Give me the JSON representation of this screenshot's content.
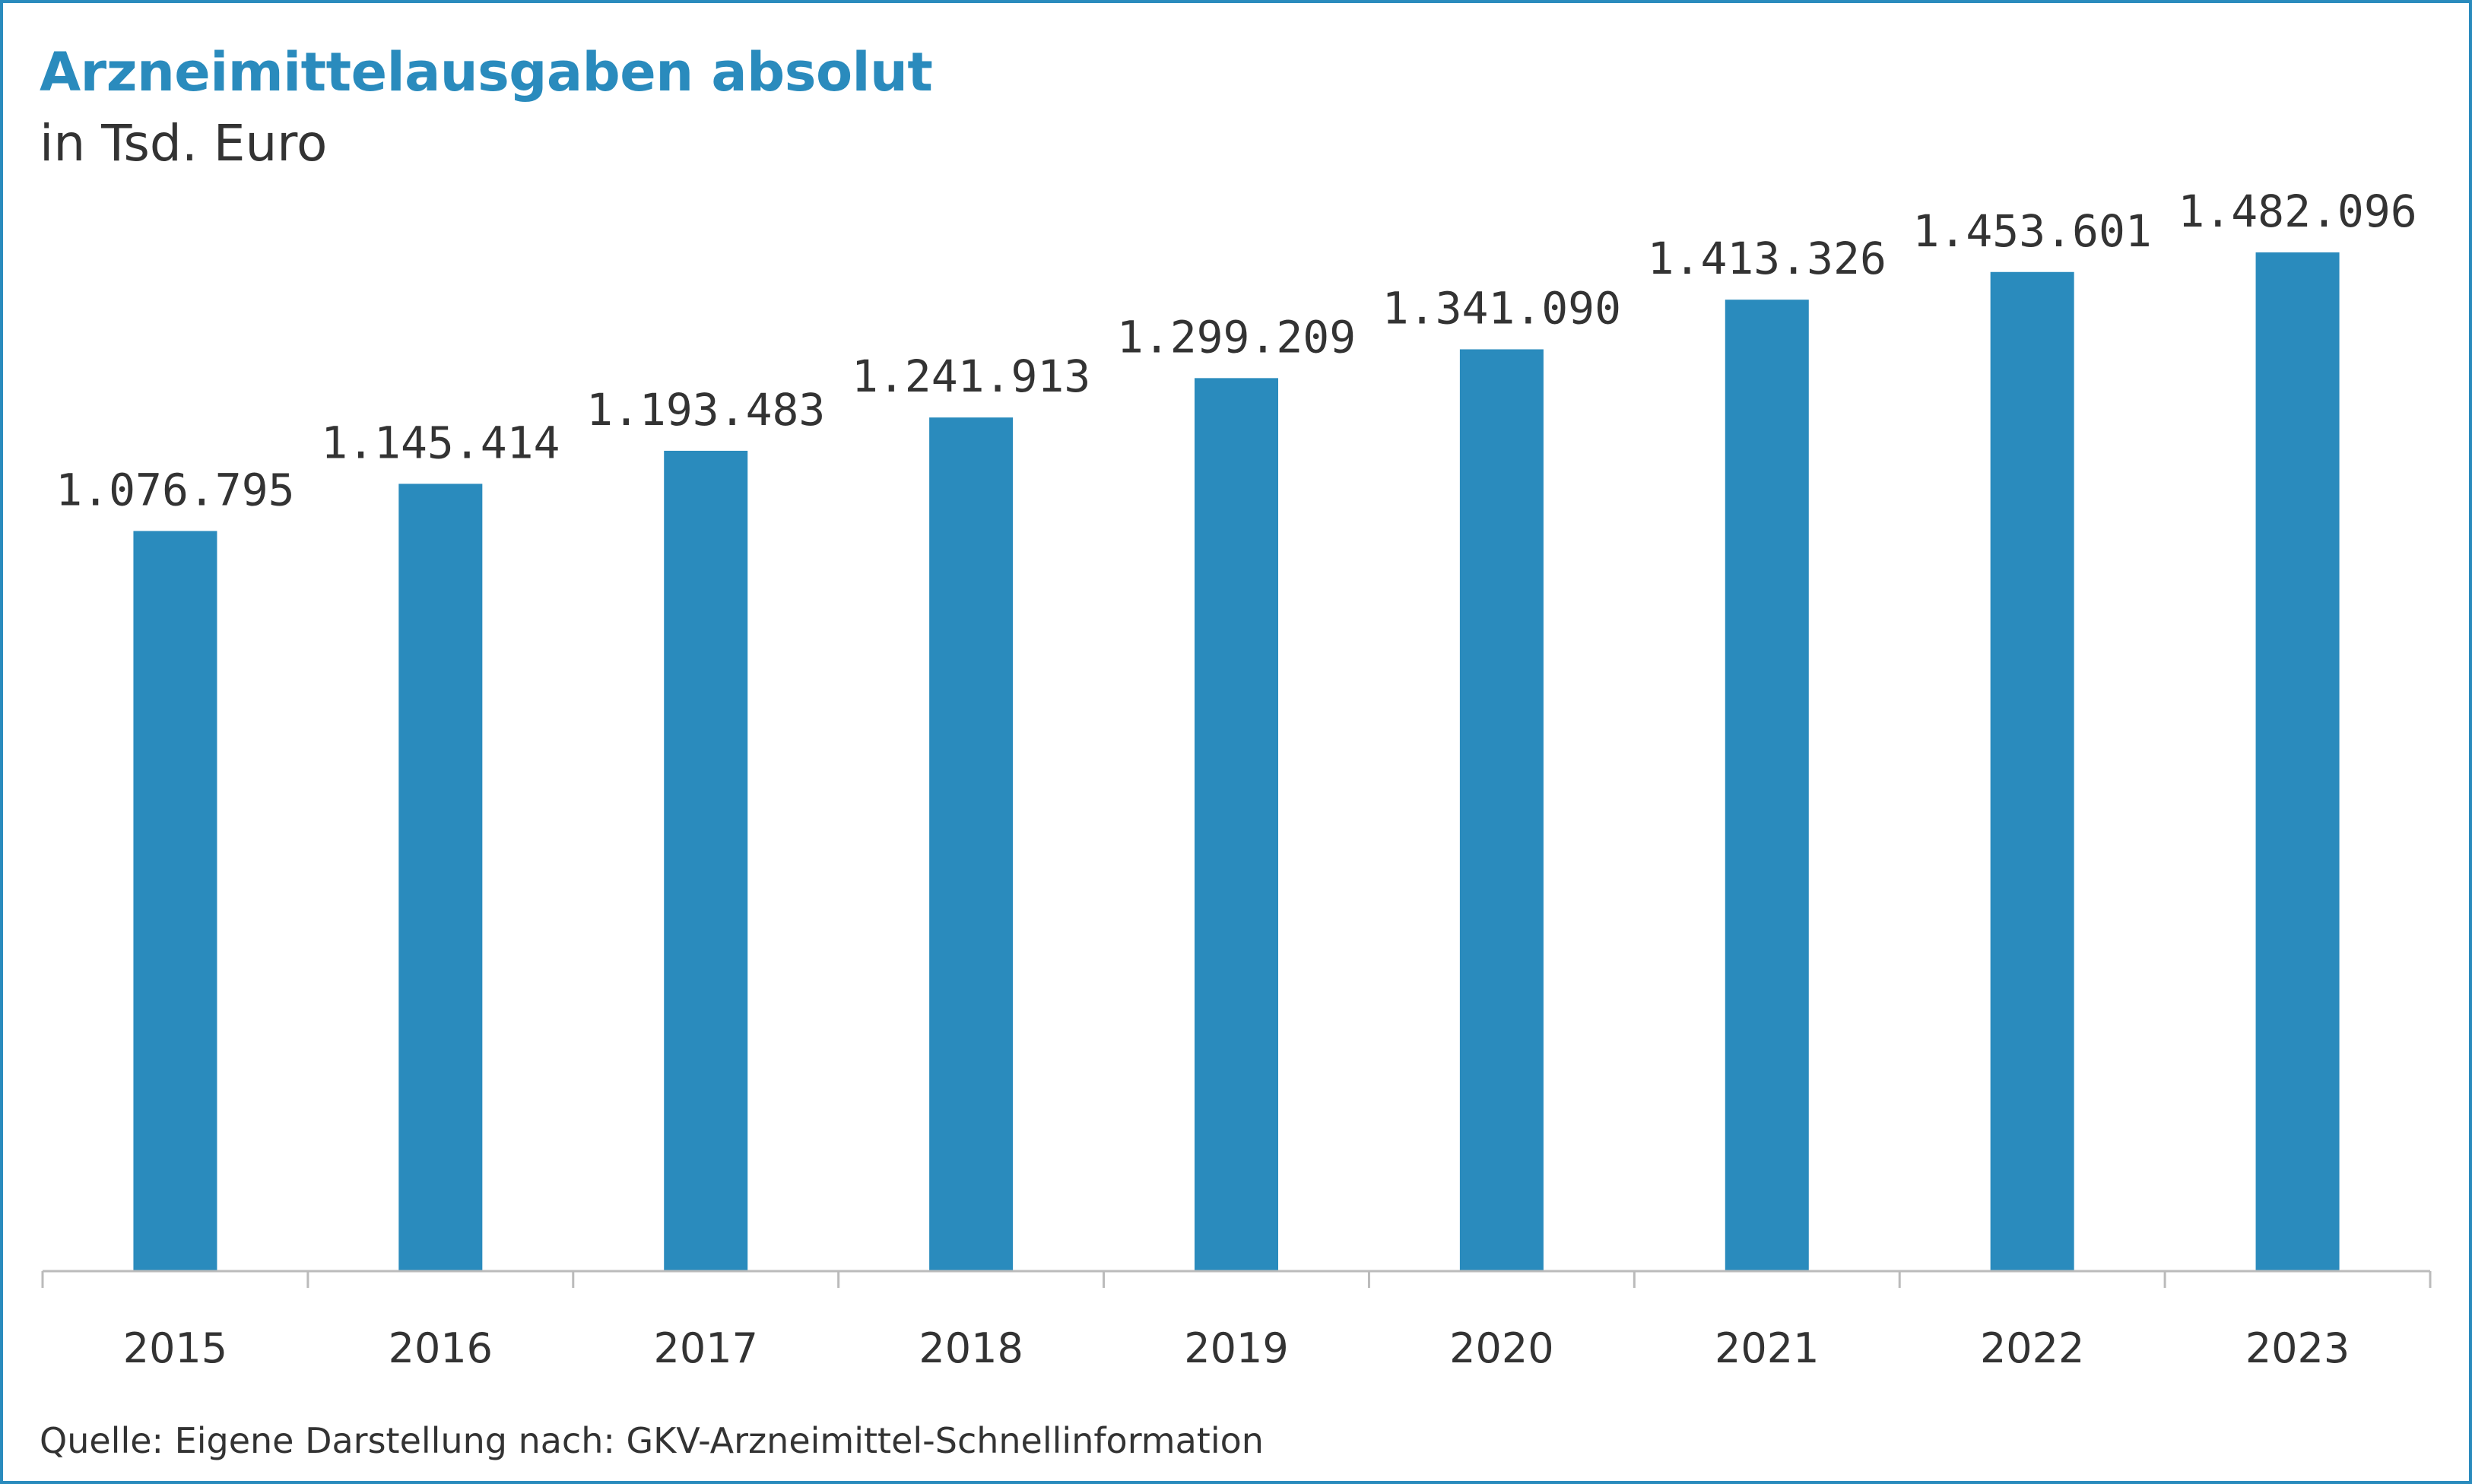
{
  "colors": {
    "bar": "#2a8bbd",
    "title": "#2a8bbd",
    "text": "#333333",
    "axis": "#bbbbbb",
    "border": "#2a8bbd"
  },
  "chart_data": {
    "type": "bar",
    "title": "Arzneimittelausgaben absolut",
    "subtitle": "in Tsd. Euro",
    "xlabel": "",
    "ylabel": "",
    "categories": [
      "2015",
      "2016",
      "2017",
      "2018",
      "2019",
      "2020",
      "2021",
      "2022",
      "2023"
    ],
    "values": [
      1076795,
      1145414,
      1193483,
      1241913,
      1299209,
      1341090,
      1413326,
      1453601,
      1482096
    ],
    "value_labels": [
      "1.076.795",
      "1.145.414",
      "1.193.483",
      "1.241.913",
      "1.299.209",
      "1.341.090",
      "1.413.326",
      "1.453.601",
      "1.482.096"
    ],
    "ylim": [
      0,
      1482096
    ],
    "grid": false,
    "legend": "none",
    "source": "Quelle: Eigene Darstellung nach: GKV-Arzneimittel-Schnellinformation"
  }
}
